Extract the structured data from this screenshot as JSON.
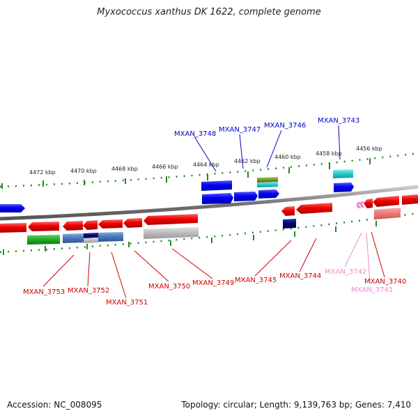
{
  "title": "Myxococcus xanthus DK 1622, complete genome",
  "footer": {
    "accession": "Accession: NC_008095",
    "summary": "Topology: circular; Length: 9,139,763 bp; Genes: 7,410"
  },
  "scale_labels": [
    "4472 kbp",
    "4470 kbp",
    "4468 kbp",
    "4466 kbp",
    "4464 kbp",
    "4462 kbp",
    "4460 kbp",
    "4458 kbp",
    "4456 kbp"
  ],
  "genes_forward": [
    "MXAN_3748",
    "MXAN_3747",
    "MXAN_3746",
    "MXAN_3743"
  ],
  "genes_reverse": [
    "MXAN_3753",
    "MXAN_3752",
    "MXAN_3751",
    "MXAN_3750",
    "MXAN_3749",
    "MXAN_3745",
    "MXAN_3744",
    "MXAN_3742",
    "MXAN_3741",
    "MXAN_3740"
  ],
  "colors": {
    "forward": "#0000cc",
    "reverse": "#cc0000",
    "pink": "#ee88cc",
    "backbone": "#888888",
    "scale": "#228822"
  }
}
